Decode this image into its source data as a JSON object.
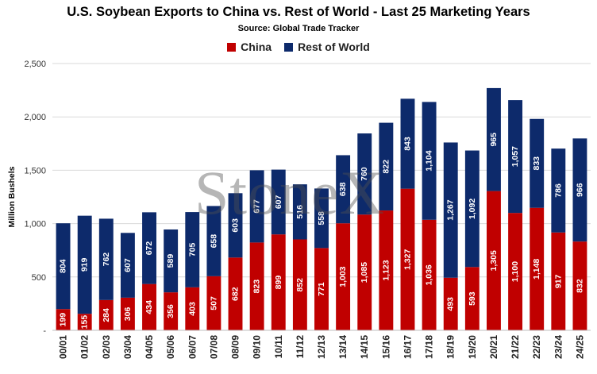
{
  "chart_data": {
    "type": "bar",
    "stacked": true,
    "title": "U.S. Soybean Exports to China vs. Rest of World - Last 25 Marketing Years",
    "subtitle": "Source: Global Trade Tracker",
    "ylabel": "Million Bushels",
    "xlabel": "",
    "ylim": [
      0,
      2500
    ],
    "yticks": [
      "-",
      "500",
      "1,000",
      "1,500",
      "2,000",
      "2,500"
    ],
    "legend_position": "top-center",
    "watermark": "StoneX",
    "categories": [
      "00/01",
      "01/02",
      "02/03",
      "03/04",
      "04/05",
      "05/06",
      "06/07",
      "07/08",
      "08/09",
      "09/10",
      "10/11",
      "11/12",
      "12/13",
      "13/14",
      "14/15",
      "15/16",
      "16/17",
      "17/18",
      "18/19",
      "19/20",
      "20/21",
      "21/22",
      "22/23",
      "23/24",
      "24/25"
    ],
    "series": [
      {
        "name": "China",
        "color": "#c00000",
        "values": [
          199,
          155,
          284,
          306,
          434,
          356,
          403,
          507,
          682,
          823,
          899,
          852,
          771,
          1003,
          1085,
          1123,
          1327,
          1036,
          493,
          593,
          1305,
          1100,
          1148,
          917,
          832
        ],
        "labels": [
          "199",
          "155",
          "284",
          "306",
          "434",
          "356",
          "403",
          "507",
          "682",
          "823",
          "899",
          "852",
          "771",
          "1,003",
          "1,085",
          "1,123",
          "1,327",
          "1,036",
          "493",
          "593",
          "1,305",
          "1,100",
          "1,148",
          "917",
          "832"
        ]
      },
      {
        "name": "Rest of World",
        "color": "#0d2a6b",
        "values": [
          804,
          919,
          762,
          607,
          672,
          589,
          705,
          658,
          603,
          677,
          607,
          516,
          558,
          638,
          760,
          822,
          843,
          1104,
          1267,
          1092,
          965,
          1057,
          833,
          786,
          966
        ],
        "labels": [
          "804",
          "919",
          "762",
          "607",
          "672",
          "589",
          "705",
          "658",
          "603",
          "677",
          "607",
          "516",
          "558",
          "638",
          "760",
          "822",
          "843",
          "1,104",
          "1,267",
          "1,092",
          "965",
          "1,057",
          "833",
          "786",
          "966"
        ]
      }
    ]
  }
}
